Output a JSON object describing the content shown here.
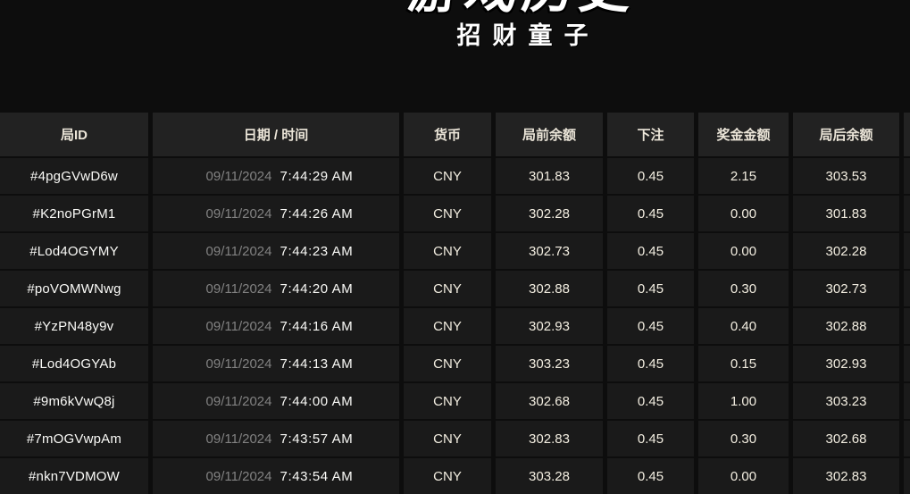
{
  "page": {
    "title": "游戏历史",
    "subtitle": "招财童子"
  },
  "table": {
    "columns": [
      "局ID",
      "日期 / 时间",
      "货币",
      "局前余额",
      "下注",
      "奖金金额",
      "局后余额"
    ],
    "rows": [
      {
        "id": "#4pgGVwD6w",
        "date": "09/11/2024",
        "time": "7:44:29 AM",
        "currency": "CNY",
        "balance_before": "301.83",
        "bet": "0.45",
        "prize": "2.15",
        "balance_after": "303.53"
      },
      {
        "id": "#K2noPGrM1",
        "date": "09/11/2024",
        "time": "7:44:26 AM",
        "currency": "CNY",
        "balance_before": "302.28",
        "bet": "0.45",
        "prize": "0.00",
        "balance_after": "301.83"
      },
      {
        "id": "#Lod4OGYMY",
        "date": "09/11/2024",
        "time": "7:44:23 AM",
        "currency": "CNY",
        "balance_before": "302.73",
        "bet": "0.45",
        "prize": "0.00",
        "balance_after": "302.28"
      },
      {
        "id": "#poVOMWNwg",
        "date": "09/11/2024",
        "time": "7:44:20 AM",
        "currency": "CNY",
        "balance_before": "302.88",
        "bet": "0.45",
        "prize": "0.30",
        "balance_after": "302.73"
      },
      {
        "id": "#YzPN48y9v",
        "date": "09/11/2024",
        "time": "7:44:16 AM",
        "currency": "CNY",
        "balance_before": "302.93",
        "bet": "0.45",
        "prize": "0.40",
        "balance_after": "302.88"
      },
      {
        "id": "#Lod4OGYAb",
        "date": "09/11/2024",
        "time": "7:44:13 AM",
        "currency": "CNY",
        "balance_before": "303.23",
        "bet": "0.45",
        "prize": "0.15",
        "balance_after": "302.93"
      },
      {
        "id": "#9m6kVwQ8j",
        "date": "09/11/2024",
        "time": "7:44:00 AM",
        "currency": "CNY",
        "balance_before": "302.68",
        "bet": "0.45",
        "prize": "1.00",
        "balance_after": "303.23"
      },
      {
        "id": "#7mOGVwpAm",
        "date": "09/11/2024",
        "time": "7:43:57 AM",
        "currency": "CNY",
        "balance_before": "302.83",
        "bet": "0.45",
        "prize": "0.30",
        "balance_after": "302.68"
      },
      {
        "id": "#nkn7VDMOW",
        "date": "09/11/2024",
        "time": "7:43:54 AM",
        "currency": "CNY",
        "balance_before": "303.28",
        "bet": "0.45",
        "prize": "0.00",
        "balance_after": "302.83"
      }
    ]
  },
  "colors": {
    "page_bg": "#0d0d0d",
    "header_bg": "#222222",
    "row_bg": "#1a1a1a",
    "text_primary": "#f3eee1",
    "text_white": "#fbfbf8",
    "text_muted": "#828282"
  }
}
